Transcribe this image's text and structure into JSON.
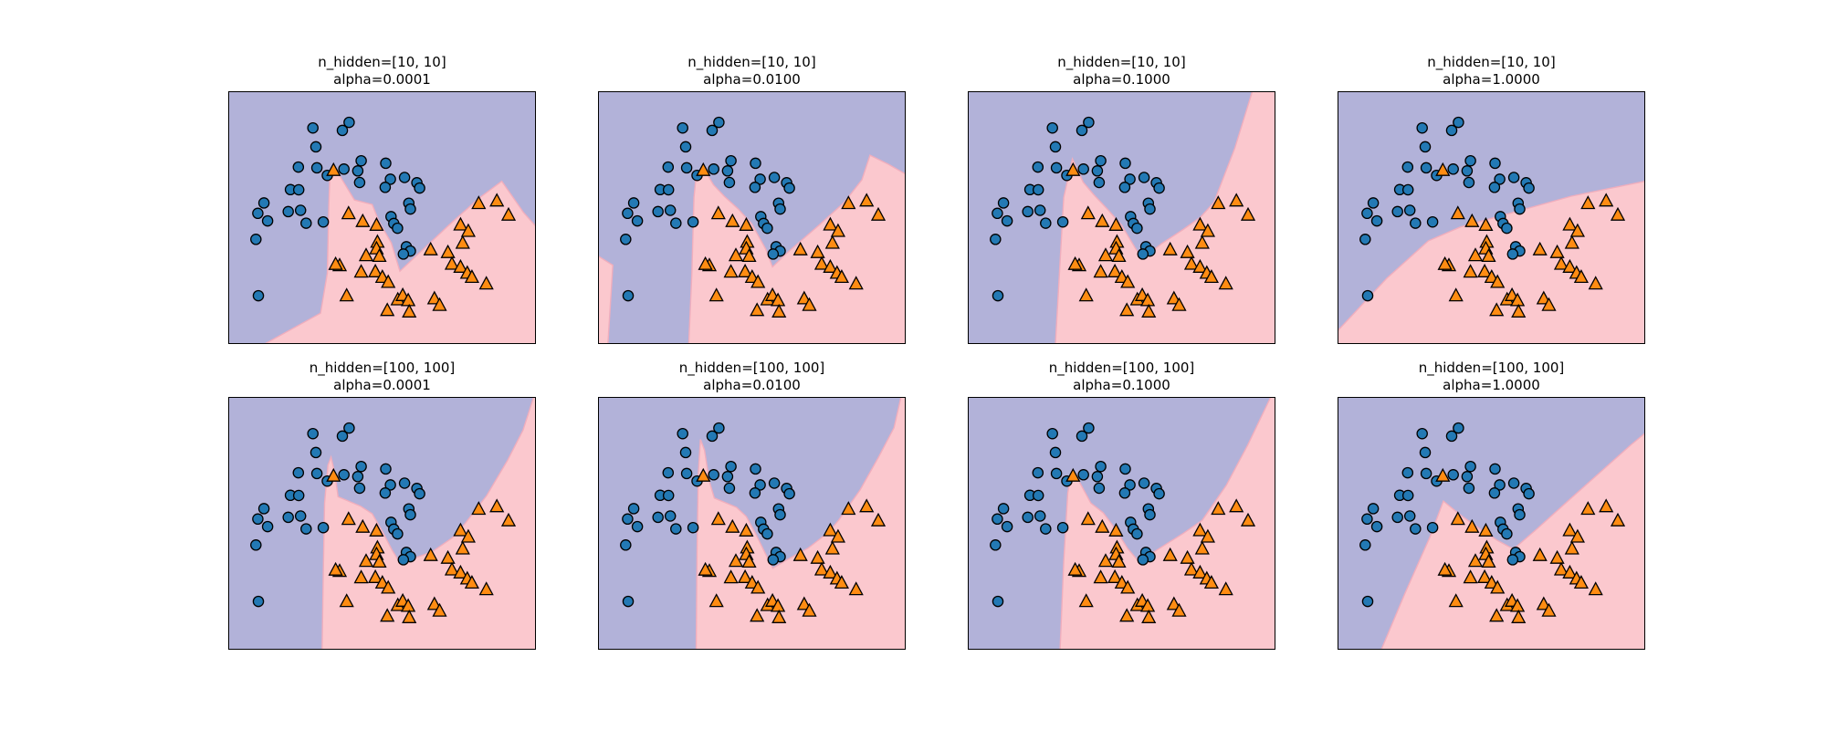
{
  "figure": {
    "background": "#ffffff",
    "subplots": [
      {
        "name": "r1c1",
        "title_line1": "n_hidden=[10, 10]",
        "title_line2": "alpha=0.0001"
      },
      {
        "name": "r1c2",
        "title_line1": "n_hidden=[10, 10]",
        "title_line2": "alpha=0.0100"
      },
      {
        "name": "r1c3",
        "title_line1": "n_hidden=[10, 10]",
        "title_line2": "alpha=0.1000"
      },
      {
        "name": "r1c4",
        "title_line1": "n_hidden=[10, 10]",
        "title_line2": "alpha=1.0000"
      },
      {
        "name": "r2c1",
        "title_line1": "n_hidden=[100, 100]",
        "title_line2": "alpha=0.0001"
      },
      {
        "name": "r2c2",
        "title_line1": "n_hidden=[100, 100]",
        "title_line2": "alpha=0.0100"
      },
      {
        "name": "r2c3",
        "title_line1": "n_hidden=[100, 100]",
        "title_line2": "alpha=0.1000"
      },
      {
        "name": "r2c4",
        "title_line1": "n_hidden=[100, 100]",
        "title_line2": "alpha=1.0000"
      }
    ]
  },
  "chart_data": {
    "type": "scatter",
    "subtype": "decision_regions",
    "grid": {
      "rows": 2,
      "cols": 4
    },
    "row_params": [
      "n_hidden=[10, 10]",
      "n_hidden=[100, 100]"
    ],
    "col_params": [
      "alpha=0.0001",
      "alpha=0.0100",
      "alpha=0.1000",
      "alpha=1.0000"
    ],
    "coords_note": "point and polygon coordinates are fractions of the axes box, x rightward, y downward from top-left",
    "series": [
      {
        "name": "class-0-circles",
        "marker": "circle",
        "color": "#2379b4",
        "points": [
          [
            0.275,
            0.145
          ],
          [
            0.393,
            0.123
          ],
          [
            0.371,
            0.155
          ],
          [
            0.285,
            0.22
          ],
          [
            0.228,
            0.3
          ],
          [
            0.288,
            0.303
          ],
          [
            0.322,
            0.333
          ],
          [
            0.376,
            0.308
          ],
          [
            0.421,
            0.315
          ],
          [
            0.432,
            0.275
          ],
          [
            0.512,
            0.285
          ],
          [
            0.527,
            0.348
          ],
          [
            0.51,
            0.38
          ],
          [
            0.573,
            0.341
          ],
          [
            0.613,
            0.362
          ],
          [
            0.622,
            0.383
          ],
          [
            0.427,
            0.361
          ],
          [
            0.202,
            0.389
          ],
          [
            0.229,
            0.39
          ],
          [
            0.116,
            0.442
          ],
          [
            0.096,
            0.483
          ],
          [
            0.128,
            0.513
          ],
          [
            0.195,
            0.476
          ],
          [
            0.235,
            0.471
          ],
          [
            0.253,
            0.522
          ],
          [
            0.309,
            0.517
          ],
          [
            0.09,
            0.586
          ],
          [
            0.587,
            0.443
          ],
          [
            0.592,
            0.466
          ],
          [
            0.529,
            0.496
          ],
          [
            0.538,
            0.523
          ],
          [
            0.55,
            0.542
          ],
          [
            0.579,
            0.615
          ],
          [
            0.592,
            0.632
          ],
          [
            0.569,
            0.644
          ],
          [
            0.098,
            0.809
          ]
        ]
      },
      {
        "name": "class-1-triangles",
        "marker": "triangle-up",
        "color": "#ff8c12",
        "points": [
          [
            0.342,
            0.313
          ],
          [
            0.391,
            0.484
          ],
          [
            0.437,
            0.515
          ],
          [
            0.482,
            0.53
          ],
          [
            0.485,
            0.597
          ],
          [
            0.482,
            0.623
          ],
          [
            0.491,
            0.653
          ],
          [
            0.448,
            0.65
          ],
          [
            0.362,
            0.69
          ],
          [
            0.349,
            0.685
          ],
          [
            0.432,
            0.715
          ],
          [
            0.478,
            0.714
          ],
          [
            0.501,
            0.736
          ],
          [
            0.52,
            0.756
          ],
          [
            0.385,
            0.809
          ],
          [
            0.551,
            0.825
          ],
          [
            0.567,
            0.808
          ],
          [
            0.585,
            0.828
          ],
          [
            0.588,
            0.873
          ],
          [
            0.517,
            0.867
          ],
          [
            0.658,
            0.627
          ],
          [
            0.67,
            0.821
          ],
          [
            0.687,
            0.847
          ],
          [
            0.714,
            0.638
          ],
          [
            0.727,
            0.684
          ],
          [
            0.755,
            0.696
          ],
          [
            0.777,
            0.72
          ],
          [
            0.792,
            0.736
          ],
          [
            0.762,
            0.601
          ],
          [
            0.755,
            0.529
          ],
          [
            0.78,
            0.554
          ],
          [
            0.814,
            0.444
          ],
          [
            0.839,
            0.762
          ],
          [
            0.873,
            0.434
          ],
          [
            0.911,
            0.49
          ]
        ]
      }
    ],
    "regions": {
      "background_color": "#b2b2d9",
      "foreground_color": "#fbc8ce",
      "boundary_edge_color": "#f0aebd",
      "pink_polygons_per_subplot": [
        [
          [
            [
              0.118,
              1.0
            ],
            [
              0.3,
              0.878
            ],
            [
              0.322,
              0.72
            ],
            [
              0.327,
              0.45
            ],
            [
              0.33,
              0.345
            ],
            [
              0.343,
              0.295
            ],
            [
              0.375,
              0.36
            ],
            [
              0.41,
              0.43
            ],
            [
              0.468,
              0.448
            ],
            [
              0.49,
              0.515
            ],
            [
              0.53,
              0.6
            ],
            [
              0.558,
              0.712
            ],
            [
              0.61,
              0.652
            ],
            [
              0.717,
              0.53
            ],
            [
              0.815,
              0.423
            ],
            [
              0.889,
              0.356
            ],
            [
              0.96,
              0.48
            ],
            [
              1.0,
              0.535
            ],
            [
              1.0,
              1.0
            ]
          ]
        ],
        [
          [
            [
              0.295,
              1.0
            ],
            [
              0.305,
              0.72
            ],
            [
              0.312,
              0.42
            ],
            [
              0.318,
              0.345
            ],
            [
              0.341,
              0.3
            ],
            [
              0.375,
              0.37
            ],
            [
              0.41,
              0.415
            ],
            [
              0.455,
              0.465
            ],
            [
              0.5,
              0.525
            ],
            [
              0.545,
              0.625
            ],
            [
              0.567,
              0.695
            ],
            [
              0.625,
              0.628
            ],
            [
              0.72,
              0.528
            ],
            [
              0.8,
              0.44
            ],
            [
              0.858,
              0.35
            ],
            [
              0.884,
              0.253
            ],
            [
              0.945,
              0.29
            ],
            [
              1.0,
              0.328
            ],
            [
              1.0,
              1.0
            ]
          ],
          [
            [
              0.0,
              0.652
            ],
            [
              0.048,
              0.688
            ],
            [
              0.032,
              1.0
            ],
            [
              0.0,
              1.0
            ]
          ]
        ],
        [
          [
            [
              0.285,
              1.0
            ],
            [
              0.298,
              0.72
            ],
            [
              0.312,
              0.42
            ],
            [
              0.34,
              0.268
            ],
            [
              0.375,
              0.36
            ],
            [
              0.41,
              0.41
            ],
            [
              0.455,
              0.468
            ],
            [
              0.5,
              0.53
            ],
            [
              0.545,
              0.622
            ],
            [
              0.567,
              0.663
            ],
            [
              0.63,
              0.603
            ],
            [
              0.7,
              0.547
            ],
            [
              0.755,
              0.5
            ],
            [
              0.8,
              0.44
            ],
            [
              0.868,
              0.225
            ],
            [
              0.925,
              0.0
            ],
            [
              1.0,
              0.0
            ],
            [
              1.0,
              1.0
            ]
          ]
        ],
        [
          [
            [
              0.0,
              0.948
            ],
            [
              0.16,
              0.74
            ],
            [
              0.295,
              0.592
            ],
            [
              0.4,
              0.537
            ],
            [
              0.56,
              0.483
            ],
            [
              0.76,
              0.415
            ],
            [
              1.0,
              0.356
            ],
            [
              1.0,
              1.0
            ],
            [
              0.0,
              1.0
            ]
          ]
        ],
        [
          [
            [
              0.305,
              1.0
            ],
            [
              0.309,
              0.7
            ],
            [
              0.313,
              0.42
            ],
            [
              0.324,
              0.27
            ],
            [
              0.334,
              0.238
            ],
            [
              0.346,
              0.3
            ],
            [
              0.357,
              0.395
            ],
            [
              0.43,
              0.432
            ],
            [
              0.468,
              0.462
            ],
            [
              0.5,
              0.53
            ],
            [
              0.532,
              0.605
            ],
            [
              0.556,
              0.652
            ],
            [
              0.6,
              0.64
            ],
            [
              0.662,
              0.613
            ],
            [
              0.73,
              0.556
            ],
            [
              0.77,
              0.5
            ],
            [
              0.84,
              0.39
            ],
            [
              0.908,
              0.25
            ],
            [
              0.958,
              0.132
            ],
            [
              0.993,
              0.0
            ],
            [
              1.0,
              0.0
            ],
            [
              1.0,
              1.0
            ]
          ]
        ],
        [
          [
            [
              0.319,
              1.0
            ],
            [
              0.322,
              0.6
            ],
            [
              0.326,
              0.3
            ],
            [
              0.333,
              0.168
            ],
            [
              0.346,
              0.21
            ],
            [
              0.362,
              0.335
            ],
            [
              0.378,
              0.4
            ],
            [
              0.45,
              0.437
            ],
            [
              0.482,
              0.473
            ],
            [
              0.512,
              0.54
            ],
            [
              0.547,
              0.627
            ],
            [
              0.568,
              0.678
            ],
            [
              0.623,
              0.638
            ],
            [
              0.683,
              0.598
            ],
            [
              0.747,
              0.538
            ],
            [
              0.782,
              0.488
            ],
            [
              0.852,
              0.368
            ],
            [
              0.912,
              0.238
            ],
            [
              0.962,
              0.122
            ],
            [
              0.985,
              0.0
            ],
            [
              1.0,
              0.0
            ],
            [
              1.0,
              1.0
            ]
          ]
        ],
        [
          [
            [
              0.3,
              1.0
            ],
            [
              0.312,
              0.65
            ],
            [
              0.325,
              0.38
            ],
            [
              0.338,
              0.292
            ],
            [
              0.36,
              0.33
            ],
            [
              0.4,
              0.42
            ],
            [
              0.44,
              0.458
            ],
            [
              0.478,
              0.52
            ],
            [
              0.52,
              0.6
            ],
            [
              0.556,
              0.652
            ],
            [
              0.622,
              0.6
            ],
            [
              0.7,
              0.54
            ],
            [
              0.762,
              0.488
            ],
            [
              0.84,
              0.35
            ],
            [
              0.91,
              0.19
            ],
            [
              0.985,
              0.0
            ],
            [
              1.0,
              0.0
            ],
            [
              1.0,
              1.0
            ]
          ]
        ],
        [
          [
            [
              0.142,
              1.0
            ],
            [
              0.22,
              0.775
            ],
            [
              0.3,
              0.555
            ],
            [
              0.344,
              0.412
            ],
            [
              0.4,
              0.468
            ],
            [
              0.46,
              0.52
            ],
            [
              0.52,
              0.568
            ],
            [
              0.572,
              0.602
            ],
            [
              0.65,
              0.52
            ],
            [
              0.755,
              0.405
            ],
            [
              0.87,
              0.28
            ],
            [
              0.953,
              0.19
            ],
            [
              1.0,
              0.143
            ],
            [
              1.0,
              1.0
            ]
          ]
        ]
      ]
    },
    "colors": {
      "marker_edge": "#000000",
      "axes_border": "#000000",
      "title_text": "#000000"
    }
  }
}
